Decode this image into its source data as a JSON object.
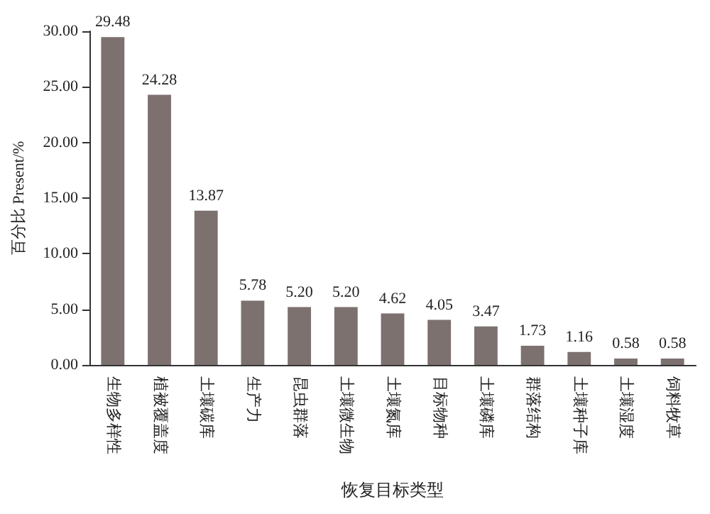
{
  "chart_data": {
    "type": "bar",
    "xlabel": "恢复目标类型",
    "ylabel": "百分比 Present/%",
    "categories": [
      "生物多样性",
      "植被覆盖度",
      "土壤碳库",
      "生产力",
      "昆虫群落",
      "土壤微生物",
      "土壤氮库",
      "目标物种",
      "土壤磷库",
      "群落结构",
      "土壤种子库",
      "土壤湿度",
      "饲料牧草"
    ],
    "values": [
      29.48,
      24.28,
      13.87,
      5.78,
      5.2,
      5.2,
      4.62,
      4.05,
      3.47,
      1.73,
      1.16,
      0.58,
      0.58
    ],
    "value_labels": [
      "29.48",
      "24.28",
      "13.87",
      "5.78",
      "5.20",
      "5.20",
      "4.62",
      "4.05",
      "3.47",
      "1.73",
      "1.16",
      "0.58",
      "0.58"
    ],
    "color": "#7d7170",
    "ylim": [
      0,
      30
    ],
    "yticks": [
      {
        "value": 0,
        "label": "0.00"
      },
      {
        "value": 5,
        "label": "5.00"
      },
      {
        "value": 10,
        "label": "10.00"
      },
      {
        "value": 15,
        "label": "15.00"
      },
      {
        "value": 20,
        "label": "20.00"
      },
      {
        "value": 25,
        "label": "25.00"
      },
      {
        "value": 30,
        "label": "30.00"
      }
    ],
    "grid": false
  }
}
